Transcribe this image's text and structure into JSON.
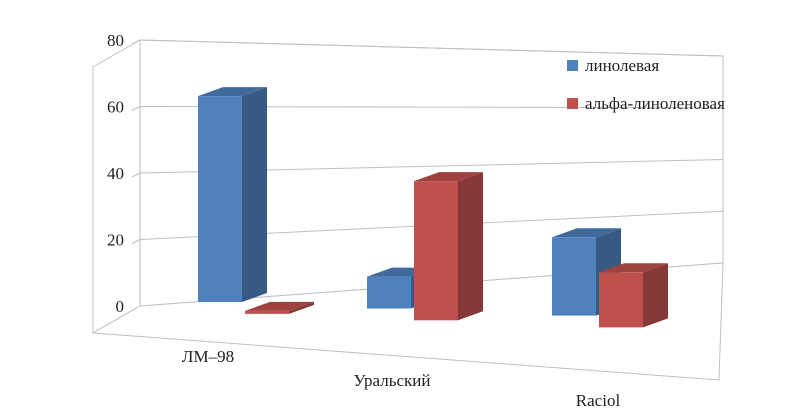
{
  "chart_data": {
    "type": "bar",
    "style": "3d-clustered-column",
    "categories": [
      "ЛМ–98",
      "Уральский",
      "Raciol"
    ],
    "series": [
      {
        "name": "линолевая",
        "values": [
          71,
          11,
          27
        ],
        "color": "#4F81BD"
      },
      {
        "name": "альфа-линоленовая",
        "values": [
          1,
          48,
          19
        ],
        "color": "#C0504D"
      }
    ],
    "yticks": [
      "0",
      "20",
      "40",
      "60",
      "80"
    ],
    "ylim": [
      0,
      80
    ],
    "grid": true,
    "legend": "right"
  }
}
